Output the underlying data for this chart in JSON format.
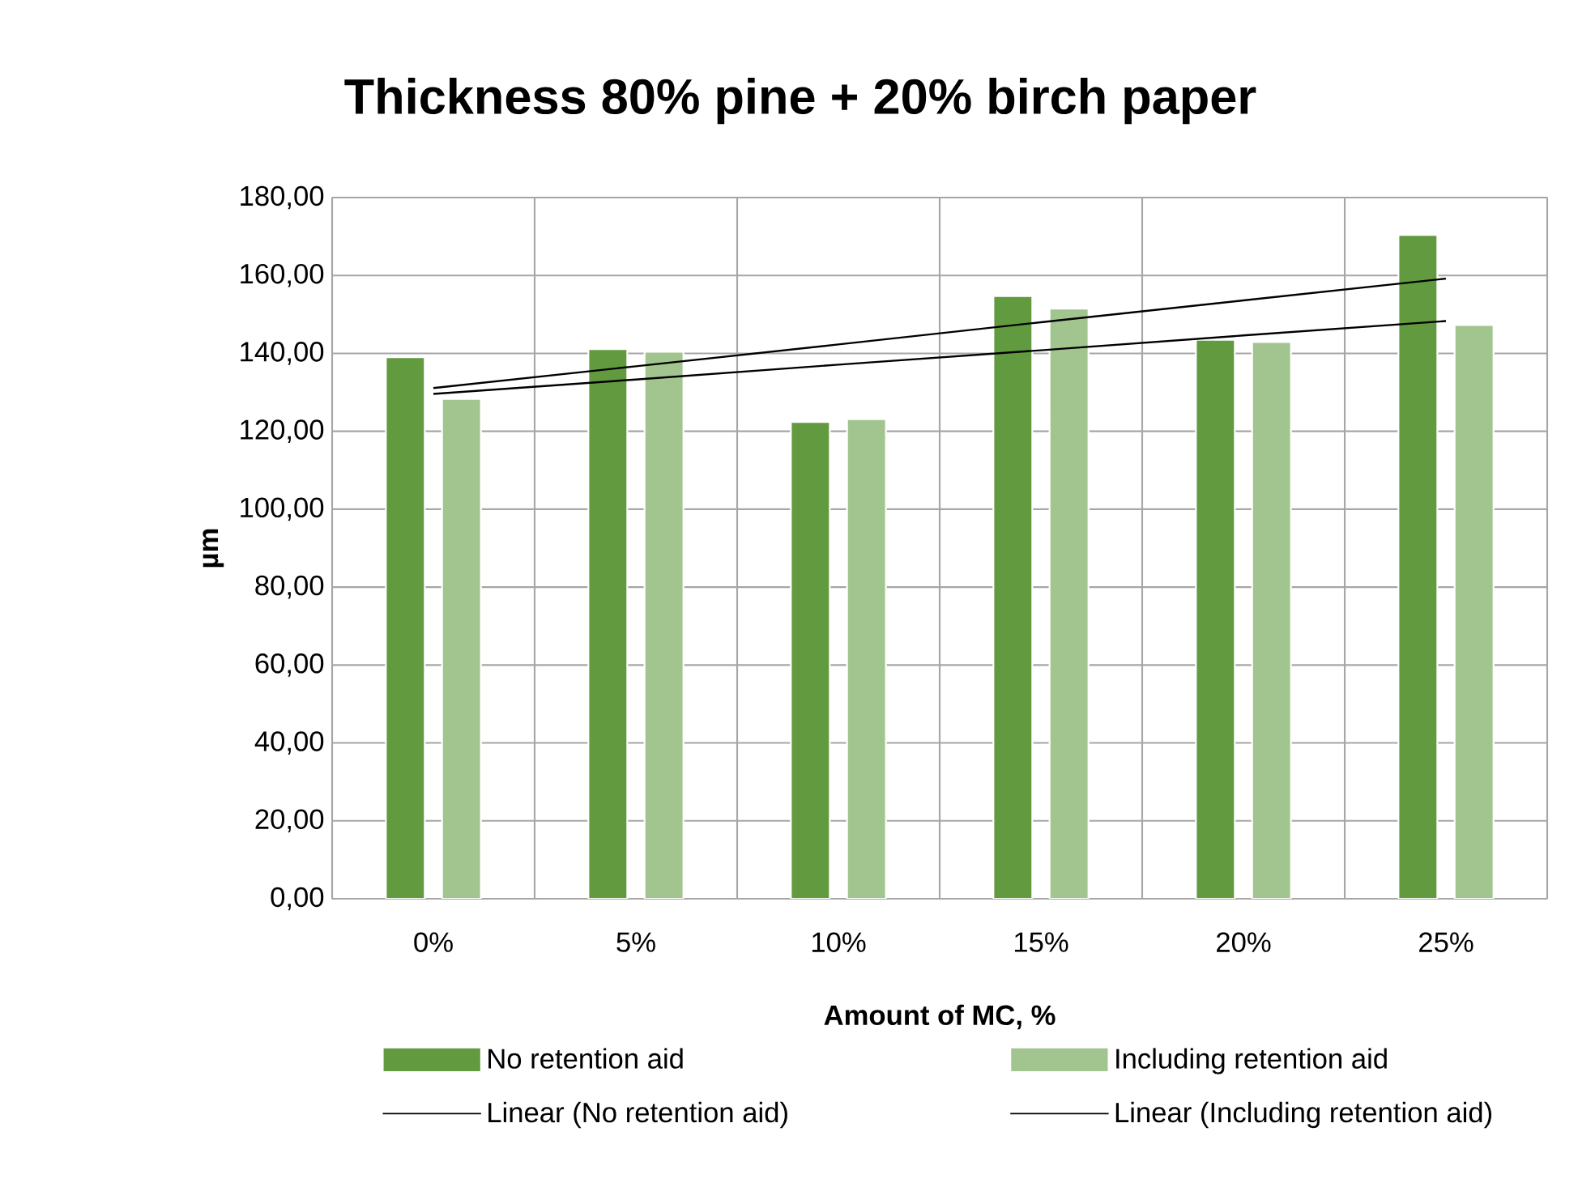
{
  "chart_data": {
    "type": "bar",
    "title": "Thickness 80% pine + 20% birch paper",
    "xlabel": "Amount of MC, %",
    "ylabel": "µm",
    "categories": [
      "0%",
      "5%",
      "10%",
      "15%",
      "20%",
      "25%"
    ],
    "series": [
      {
        "name": "No retention aid",
        "color": "#629a3f",
        "values": [
          139.0,
          141.1,
          122.4,
          154.7,
          143.5,
          170.4
        ]
      },
      {
        "name": "Including retention aid",
        "color": "#a2c58f",
        "values": [
          128.3,
          140.4,
          123.1,
          151.5,
          142.9,
          147.3
        ]
      },
      {
        "name": "Linear (No retention aid)",
        "type": "line",
        "color": "#000000",
        "values": [
          131.1,
          136.7,
          142.3,
          148.0,
          153.6,
          159.2
        ]
      },
      {
        "name": "Linear (Including retention aid)",
        "type": "line",
        "color": "#000000",
        "values": [
          129.6,
          133.3,
          137.1,
          140.8,
          144.6,
          148.3
        ]
      }
    ],
    "ylim": [
      0,
      180
    ],
    "yticks": [
      {
        "value": 0,
        "label": "0,00"
      },
      {
        "value": 20,
        "label": "20,00"
      },
      {
        "value": 40,
        "label": "40,00"
      },
      {
        "value": 60,
        "label": "60,00"
      },
      {
        "value": 80,
        "label": "80,00"
      },
      {
        "value": 100,
        "label": "100,00"
      },
      {
        "value": 120,
        "label": "120,00"
      },
      {
        "value": 140,
        "label": "140,00"
      },
      {
        "value": 160,
        "label": "160,00"
      },
      {
        "value": 180,
        "label": "180,00"
      }
    ],
    "grid": true,
    "legend": "bottom",
    "marker": "none"
  }
}
